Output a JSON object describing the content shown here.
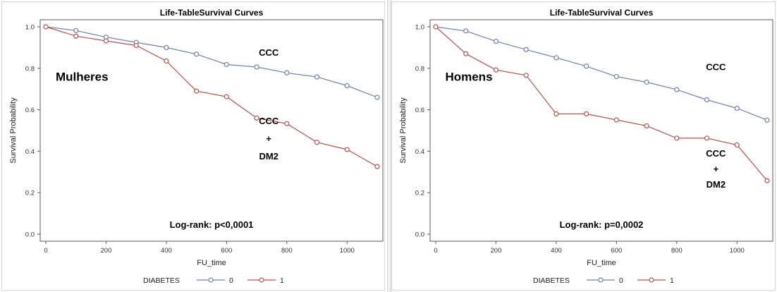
{
  "chart_data": [
    {
      "type": "line",
      "title": "Life-TableSurvival Curves",
      "xlabel": "FU_time",
      "ylabel": "Survival Probability",
      "xlim": [
        0,
        1100
      ],
      "ylim": [
        0,
        1
      ],
      "xticks": [
        "0",
        "200",
        "400",
        "600",
        "800",
        "1000"
      ],
      "yticks": [
        "0.0",
        "0.2",
        "0.4",
        "0.6",
        "0.8",
        "1.0"
      ],
      "grid": false,
      "legend": {
        "title": "DIABETES",
        "placement": "bottom-center"
      },
      "series": [
        {
          "name": "0",
          "color": "#6f7fb5",
          "x": [
            0,
            100,
            200,
            300,
            400,
            500,
            600,
            700,
            800,
            900,
            1000,
            1100
          ],
          "y": [
            1.0,
            0.982,
            0.95,
            0.925,
            0.9,
            0.868,
            0.818,
            0.806,
            0.778,
            0.758,
            0.716,
            0.66
          ]
        },
        {
          "name": "1",
          "color": "#c0504d",
          "x": [
            0,
            100,
            200,
            300,
            400,
            500,
            600,
            700,
            800,
            900,
            1000,
            1100
          ],
          "y": [
            1.0,
            0.955,
            0.932,
            0.91,
            0.835,
            0.69,
            0.663,
            0.56,
            0.533,
            0.443,
            0.408,
            0.326
          ]
        }
      ],
      "annotations": [
        {
          "text": "CCC",
          "x": 740,
          "y": 0.86
        },
        {
          "text": "CCC",
          "x": 740,
          "y": 0.53
        },
        {
          "text": "+",
          "x": 740,
          "y": 0.445
        },
        {
          "text": "DM2",
          "x": 740,
          "y": 0.36
        },
        {
          "text": "Mulheres",
          "x": 120,
          "y": 0.74,
          "size": "large"
        },
        {
          "text": "Log-rank: p<0,0001",
          "x": 550,
          "y": 0.03
        }
      ]
    },
    {
      "type": "line",
      "title": "Life-TableSurvival Curves",
      "xlabel": "FU_time",
      "ylabel": "Survival Probability",
      "xlim": [
        0,
        1100
      ],
      "ylim": [
        0,
        1
      ],
      "xticks": [
        "0",
        "200",
        "400",
        "600",
        "800",
        "1000"
      ],
      "yticks": [
        "0.0",
        "0.2",
        "0.4",
        "0.6",
        "0.8",
        "1.0"
      ],
      "grid": false,
      "legend": {
        "title": "DIABETES",
        "placement": "bottom-center"
      },
      "series": [
        {
          "name": "0",
          "color": "#6f7fb5",
          "x": [
            0,
            100,
            200,
            300,
            400,
            500,
            600,
            700,
            800,
            900,
            1000,
            1100
          ],
          "y": [
            1.0,
            0.98,
            0.93,
            0.89,
            0.851,
            0.81,
            0.76,
            0.733,
            0.697,
            0.648,
            0.607,
            0.55
          ]
        },
        {
          "name": "1",
          "color": "#c0504d",
          "x": [
            0,
            100,
            200,
            300,
            400,
            500,
            600,
            700,
            800,
            900,
            1000,
            1100
          ],
          "y": [
            1.0,
            0.87,
            0.792,
            0.766,
            0.58,
            0.58,
            0.551,
            0.522,
            0.463,
            0.463,
            0.43,
            0.258
          ]
        }
      ],
      "annotations": [
        {
          "text": "CCC",
          "x": 930,
          "y": 0.79
        },
        {
          "text": "CCC",
          "x": 930,
          "y": 0.375
        },
        {
          "text": "+",
          "x": 930,
          "y": 0.3
        },
        {
          "text": "DM2",
          "x": 930,
          "y": 0.225
        },
        {
          "text": "Homens",
          "x": 110,
          "y": 0.74,
          "size": "large"
        },
        {
          "text": "Log-rank: p=0,0002",
          "x": 550,
          "y": 0.03
        }
      ]
    }
  ]
}
